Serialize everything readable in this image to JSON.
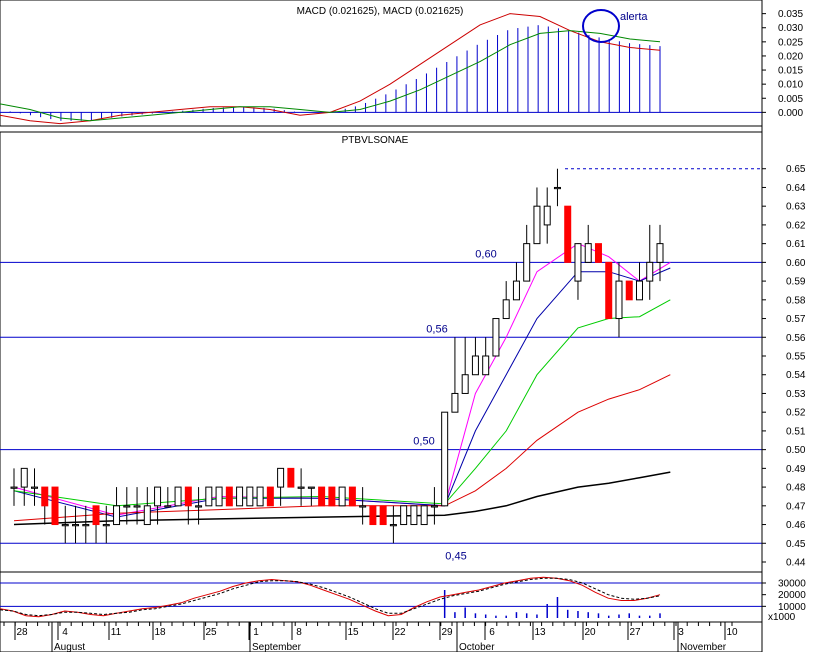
{
  "colors": {
    "reference_line": "#0000cc",
    "macd_line": "#cc0000",
    "macd_signal": "#008800",
    "macd_histogram": "#0000cc",
    "candle_down": "#ff0000",
    "candle_up": "#ffffff",
    "ma_magenta": "#ff00ff",
    "ma_blue": "#0000aa",
    "ma_green": "#00cc00",
    "ma_red": "#dd0000",
    "ma_black": "#000000",
    "vol_ma": "#dd0000"
  },
  "chart_data": [
    {
      "type": "line",
      "title": "MACD (0.021625), MACD (0.021625)",
      "ylim": [
        -0.002,
        0.037
      ],
      "yticks": [
        "0.035",
        "0.030",
        "0.025",
        "0.020",
        "0.015",
        "0.010",
        "0.005",
        "0.000"
      ],
      "annotation": "alerta",
      "series": [
        {
          "values": [
            -0.001,
            -0.003,
            -0.004,
            -0.003,
            -0.001,
            0.0,
            0.001,
            0.002,
            0.002,
            0.001,
            -0.001,
            0.0,
            0.004,
            0.01,
            0.017,
            0.024,
            0.031,
            0.035,
            0.034,
            0.029,
            0.025,
            0.023,
            0.022
          ]
        },
        {
          "values": [
            0.003,
            0.001,
            -0.002,
            -0.003,
            -0.002,
            -0.001,
            0.0,
            0.001,
            0.002,
            0.002,
            0.001,
            0.0,
            0.001,
            0.004,
            0.008,
            0.013,
            0.018,
            0.024,
            0.028,
            0.029,
            0.028,
            0.026,
            0.025
          ]
        }
      ]
    },
    {
      "type": "bar",
      "title": "PTBVLSONAE",
      "ylim": [
        0.44,
        0.66
      ],
      "yticks": [
        "0.65",
        "0.64",
        "0.63",
        "0.62",
        "0.61",
        "0.60",
        "0.59",
        "0.58",
        "0.57",
        "0.56",
        "0.55",
        "0.54",
        "0.53",
        "0.52",
        "0.51",
        "0.50",
        "0.49",
        "0.48",
        "0.47",
        "0.46",
        "0.45",
        "0.44"
      ],
      "levels": [
        {
          "label": "0,60",
          "value": 0.6
        },
        {
          "label": "0,56",
          "value": 0.56
        },
        {
          "label": "0,50",
          "value": 0.5
        },
        {
          "label": "0,45",
          "value": 0.45
        }
      ],
      "resistance": 0.65,
      "candles": [
        {
          "o": 0.48,
          "h": 0.49,
          "l": 0.47,
          "c": 0.48
        },
        {
          "o": 0.48,
          "h": 0.49,
          "l": 0.47,
          "c": 0.49
        },
        {
          "o": 0.48,
          "h": 0.49,
          "l": 0.47,
          "c": 0.48
        },
        {
          "o": 0.48,
          "h": 0.48,
          "l": 0.46,
          "c": 0.47
        },
        {
          "o": 0.48,
          "h": 0.48,
          "l": 0.46,
          "c": 0.46
        },
        {
          "o": 0.46,
          "h": 0.47,
          "l": 0.45,
          "c": 0.46
        },
        {
          "o": 0.46,
          "h": 0.47,
          "l": 0.45,
          "c": 0.46
        },
        {
          "o": 0.46,
          "h": 0.47,
          "l": 0.45,
          "c": 0.46
        },
        {
          "o": 0.47,
          "h": 0.47,
          "l": 0.45,
          "c": 0.46
        },
        {
          "o": 0.46,
          "h": 0.47,
          "l": 0.45,
          "c": 0.46
        },
        {
          "o": 0.46,
          "h": 0.48,
          "l": 0.46,
          "c": 0.47
        },
        {
          "o": 0.47,
          "h": 0.48,
          "l": 0.46,
          "c": 0.47
        },
        {
          "o": 0.47,
          "h": 0.48,
          "l": 0.46,
          "c": 0.47
        },
        {
          "o": 0.46,
          "h": 0.48,
          "l": 0.46,
          "c": 0.47
        },
        {
          "o": 0.47,
          "h": 0.48,
          "l": 0.46,
          "c": 0.48
        },
        {
          "o": 0.47,
          "h": 0.48,
          "l": 0.47,
          "c": 0.47
        },
        {
          "o": 0.47,
          "h": 0.48,
          "l": 0.47,
          "c": 0.48
        },
        {
          "o": 0.48,
          "h": 0.48,
          "l": 0.46,
          "c": 0.47
        },
        {
          "o": 0.47,
          "h": 0.48,
          "l": 0.46,
          "c": 0.47
        },
        {
          "o": 0.47,
          "h": 0.48,
          "l": 0.47,
          "c": 0.48
        },
        {
          "o": 0.47,
          "h": 0.48,
          "l": 0.47,
          "c": 0.48
        },
        {
          "o": 0.48,
          "h": 0.48,
          "l": 0.47,
          "c": 0.47
        },
        {
          "o": 0.47,
          "h": 0.48,
          "l": 0.47,
          "c": 0.48
        },
        {
          "o": 0.47,
          "h": 0.48,
          "l": 0.47,
          "c": 0.48
        },
        {
          "o": 0.47,
          "h": 0.48,
          "l": 0.47,
          "c": 0.48
        },
        {
          "o": 0.48,
          "h": 0.48,
          "l": 0.47,
          "c": 0.47
        },
        {
          "o": 0.48,
          "h": 0.49,
          "l": 0.47,
          "c": 0.49
        },
        {
          "o": 0.49,
          "h": 0.49,
          "l": 0.48,
          "c": 0.48
        },
        {
          "o": 0.48,
          "h": 0.49,
          "l": 0.47,
          "c": 0.48
        },
        {
          "o": 0.48,
          "h": 0.48,
          "l": 0.47,
          "c": 0.48
        },
        {
          "o": 0.48,
          "h": 0.48,
          "l": 0.47,
          "c": 0.47
        },
        {
          "o": 0.48,
          "h": 0.48,
          "l": 0.47,
          "c": 0.47
        },
        {
          "o": 0.47,
          "h": 0.48,
          "l": 0.47,
          "c": 0.48
        },
        {
          "o": 0.48,
          "h": 0.48,
          "l": 0.47,
          "c": 0.47
        },
        {
          "o": 0.47,
          "h": 0.48,
          "l": 0.46,
          "c": 0.47
        },
        {
          "o": 0.47,
          "h": 0.47,
          "l": 0.46,
          "c": 0.46
        },
        {
          "o": 0.47,
          "h": 0.47,
          "l": 0.46,
          "c": 0.46
        },
        {
          "o": 0.46,
          "h": 0.47,
          "l": 0.45,
          "c": 0.46
        },
        {
          "o": 0.46,
          "h": 0.47,
          "l": 0.46,
          "c": 0.47
        },
        {
          "o": 0.46,
          "h": 0.47,
          "l": 0.46,
          "c": 0.47
        },
        {
          "o": 0.46,
          "h": 0.47,
          "l": 0.46,
          "c": 0.47
        },
        {
          "o": 0.47,
          "h": 0.48,
          "l": 0.46,
          "c": 0.47
        },
        {
          "o": 0.47,
          "h": 0.52,
          "l": 0.47,
          "c": 0.52
        },
        {
          "o": 0.52,
          "h": 0.56,
          "l": 0.52,
          "c": 0.53
        },
        {
          "o": 0.53,
          "h": 0.56,
          "l": 0.53,
          "c": 0.54
        },
        {
          "o": 0.54,
          "h": 0.56,
          "l": 0.54,
          "c": 0.55
        },
        {
          "o": 0.54,
          "h": 0.56,
          "l": 0.54,
          "c": 0.55
        },
        {
          "o": 0.55,
          "h": 0.57,
          "l": 0.55,
          "c": 0.57
        },
        {
          "o": 0.57,
          "h": 0.59,
          "l": 0.57,
          "c": 0.58
        },
        {
          "o": 0.58,
          "h": 0.6,
          "l": 0.58,
          "c": 0.59
        },
        {
          "o": 0.59,
          "h": 0.62,
          "l": 0.59,
          "c": 0.61
        },
        {
          "o": 0.61,
          "h": 0.64,
          "l": 0.61,
          "c": 0.63
        },
        {
          "o": 0.62,
          "h": 0.64,
          "l": 0.61,
          "c": 0.63
        },
        {
          "o": 0.64,
          "h": 0.65,
          "l": 0.63,
          "c": 0.64
        },
        {
          "o": 0.63,
          "h": 0.63,
          "l": 0.6,
          "c": 0.6
        },
        {
          "o": 0.59,
          "h": 0.61,
          "l": 0.58,
          "c": 0.61
        },
        {
          "o": 0.6,
          "h": 0.62,
          "l": 0.6,
          "c": 0.61
        },
        {
          "o": 0.61,
          "h": 0.61,
          "l": 0.6,
          "c": 0.6
        },
        {
          "o": 0.6,
          "h": 0.6,
          "l": 0.57,
          "c": 0.57
        },
        {
          "o": 0.57,
          "h": 0.6,
          "l": 0.56,
          "c": 0.59
        },
        {
          "o": 0.59,
          "h": 0.59,
          "l": 0.58,
          "c": 0.58
        },
        {
          "o": 0.58,
          "h": 0.6,
          "l": 0.58,
          "c": 0.59
        },
        {
          "o": 0.59,
          "h": 0.62,
          "l": 0.58,
          "c": 0.6
        },
        {
          "o": 0.6,
          "h": 0.62,
          "l": 0.59,
          "c": 0.61
        }
      ],
      "moving_averages": [
        {
          "color_key": "ma_magenta",
          "values": [
            [
              0,
              0.48
            ],
            [
              10,
              0.465
            ],
            [
              20,
              0.475
            ],
            [
              30,
              0.474
            ],
            [
              42,
              0.47
            ],
            [
              45,
              0.53
            ],
            [
              48,
              0.56
            ],
            [
              51,
              0.595
            ],
            [
              55,
              0.61
            ],
            [
              58,
              0.603
            ],
            [
              61,
              0.59
            ],
            [
              64,
              0.6
            ]
          ]
        },
        {
          "color_key": "ma_blue",
          "values": [
            [
              0,
              0.478
            ],
            [
              10,
              0.464
            ],
            [
              20,
              0.474
            ],
            [
              30,
              0.474
            ],
            [
              42,
              0.47
            ],
            [
              45,
              0.51
            ],
            [
              48,
              0.54
            ],
            [
              51,
              0.57
            ],
            [
              55,
              0.595
            ],
            [
              58,
              0.595
            ],
            [
              61,
              0.59
            ],
            [
              64,
              0.597
            ]
          ]
        },
        {
          "color_key": "ma_green",
          "values": [
            [
              0,
              0.478
            ],
            [
              10,
              0.47
            ],
            [
              20,
              0.474
            ],
            [
              30,
              0.475
            ],
            [
              42,
              0.471
            ],
            [
              45,
              0.49
            ],
            [
              48,
              0.51
            ],
            [
              51,
              0.54
            ],
            [
              55,
              0.565
            ],
            [
              58,
              0.57
            ],
            [
              61,
              0.571
            ],
            [
              64,
              0.58
            ]
          ]
        },
        {
          "color_key": "ma_red",
          "values": [
            [
              0,
              0.462
            ],
            [
              10,
              0.466
            ],
            [
              20,
              0.468
            ],
            [
              30,
              0.47
            ],
            [
              42,
              0.47
            ],
            [
              45,
              0.478
            ],
            [
              48,
              0.49
            ],
            [
              51,
              0.505
            ],
            [
              55,
              0.52
            ],
            [
              58,
              0.527
            ],
            [
              61,
              0.532
            ],
            [
              64,
              0.54
            ]
          ]
        },
        {
          "color_key": "ma_black",
          "values": [
            [
              0,
              0.46
            ],
            [
              10,
              0.462
            ],
            [
              20,
              0.463
            ],
            [
              30,
              0.464
            ],
            [
              42,
              0.465
            ],
            [
              45,
              0.467
            ],
            [
              48,
              0.47
            ],
            [
              51,
              0.475
            ],
            [
              55,
              0.48
            ],
            [
              58,
              0.482
            ],
            [
              61,
              0.485
            ],
            [
              64,
              0.488
            ]
          ]
        }
      ]
    },
    {
      "type": "bar",
      "title": "",
      "ylim": [
        0,
        36000
      ],
      "yticks": [
        "30000",
        "20000",
        "10000"
      ],
      "unit": "x1000",
      "reference_levels": [
        30000,
        10000
      ],
      "values": [
        8000,
        6000,
        2000,
        1000,
        3000,
        6000,
        5000,
        3000,
        2000,
        4000,
        6000,
        8000,
        9000,
        11000,
        13000,
        17000,
        20000,
        23000,
        27000,
        30000,
        32000,
        33000,
        32000,
        31000,
        28000,
        24000,
        20000,
        16000,
        11000,
        6000,
        2000,
        3000,
        9000,
        14000,
        18000,
        20000,
        22000,
        24000,
        27000,
        30000,
        32000,
        34000,
        35000,
        34000,
        32000,
        28000,
        22000,
        17000,
        15000,
        15000,
        17000,
        20000
      ],
      "vol_bars": [
        0,
        0,
        0,
        0,
        0,
        0,
        0,
        0,
        0,
        0,
        0,
        0,
        0,
        0,
        0,
        0,
        0,
        0,
        0,
        0,
        0,
        0,
        0,
        0,
        0,
        0,
        0,
        0,
        0,
        0,
        0,
        0,
        0,
        0,
        0,
        0,
        0,
        0,
        0,
        0,
        0,
        0,
        24000,
        5000,
        9000,
        4000,
        3000,
        2000,
        2000,
        5000,
        4000,
        3000,
        12000,
        18000,
        7000,
        6000,
        5000,
        4000,
        2000,
        3000,
        4000,
        2000,
        2000,
        4000
      ],
      "signal": [
        7000,
        6000,
        3000,
        2000,
        3000,
        5000,
        5000,
        4000,
        3000,
        4000,
        5000,
        7000,
        8000,
        10000,
        12000,
        15000,
        18000,
        21000,
        25000,
        28000,
        31000,
        32000,
        32000,
        31000,
        29000,
        26000,
        22000,
        18000,
        13000,
        8000,
        4000,
        4000,
        8000,
        12000,
        16000,
        19000,
        21000,
        23000,
        26000,
        29000,
        31000,
        33000,
        34000,
        34000,
        33000,
        30000,
        25000,
        20000,
        17000,
        16000,
        17000,
        19000
      ]
    }
  ],
  "x_axis": {
    "day_labels": [
      "28",
      "4",
      "11",
      "18",
      "25",
      "1",
      "8",
      "15",
      "22",
      "29",
      "6",
      "13",
      "20",
      "27",
      "3",
      "10"
    ],
    "month_labels": [
      "August",
      "September",
      "October",
      "November"
    ]
  }
}
